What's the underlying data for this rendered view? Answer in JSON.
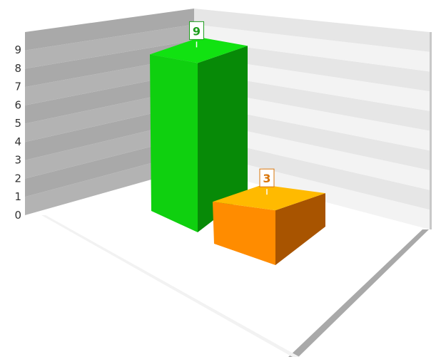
{
  "chart_data": {
    "type": "bar",
    "categories": [
      "",
      ""
    ],
    "values": [
      9,
      3
    ],
    "ylim": [
      0,
      9
    ],
    "yticks": [
      "0",
      "1",
      "2",
      "3",
      "4",
      "5",
      "6",
      "7",
      "8",
      "9"
    ],
    "data_labels": [
      "9",
      "3"
    ],
    "grid": true,
    "legend": "none",
    "style": "3d",
    "colors": {
      "bar_1_front": "#0fd00f",
      "bar_1_side": "#078a07",
      "bar_1_top": "#11e211",
      "bar_1_label": "#1f9e1f",
      "bar_2_front": "#ff8c00",
      "bar_2_side": "#a85400",
      "bar_2_top": "#ffba00",
      "bar_2_label": "#d9760a",
      "band_dark": "#a9a9a9",
      "band_light": "#e6e6e6"
    }
  }
}
